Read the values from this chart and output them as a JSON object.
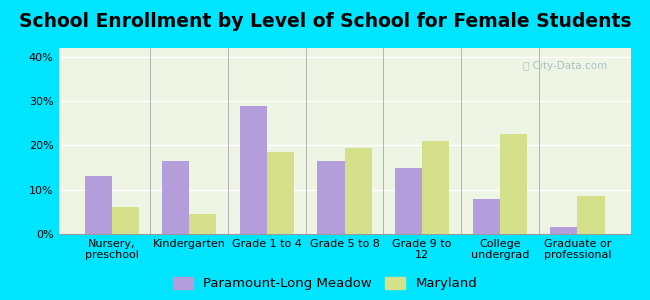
{
  "title": "School Enrollment by Level of School for Female Students",
  "categories": [
    "Nursery,\npreschool",
    "Kindergarten",
    "Grade 1 to 4",
    "Grade 5 to 8",
    "Grade 9 to\n12",
    "College\nundergrad",
    "Graduate or\nprofessional"
  ],
  "paramount": [
    13,
    16.5,
    29,
    16.5,
    15,
    8,
    1.5
  ],
  "maryland": [
    6,
    4.5,
    18.5,
    19.5,
    21,
    22.5,
    8.5
  ],
  "paramount_color": "#b39ddb",
  "maryland_color": "#d4e08a",
  "background_outer": "#00e5ff",
  "background_inner": "#eef5e4",
  "ylim": [
    0,
    42
  ],
  "yticks": [
    0,
    10,
    20,
    30,
    40
  ],
  "ytick_labels": [
    "0%",
    "10%",
    "20%",
    "30%",
    "40%"
  ],
  "legend_labels": [
    "Paramount-Long Meadow",
    "Maryland"
  ],
  "bar_width": 0.35,
  "title_fontsize": 13.5,
  "tick_fontsize": 8.0,
  "legend_fontsize": 9.5
}
